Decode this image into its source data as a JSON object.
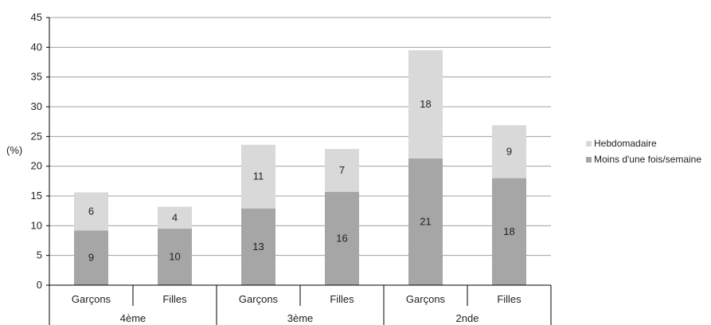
{
  "chart_data": {
    "type": "bar",
    "stacked": true,
    "ylabel": "(%)",
    "ylim": [
      0,
      45
    ],
    "ytick_step": 5,
    "grid": true,
    "legend_position": "right",
    "categories": [
      "Garçons",
      "Filles",
      "Garçons",
      "Filles",
      "Garçons",
      "Filles"
    ],
    "groups": [
      {
        "label": "4ème",
        "span": 2
      },
      {
        "label": "3ème",
        "span": 2
      },
      {
        "label": "2nde",
        "span": 2
      }
    ],
    "series": [
      {
        "name": "Moins d'une fois/semaine",
        "color": "#a6a6a6",
        "values": [
          9.2,
          9.5,
          12.9,
          15.7,
          21.3,
          18.0
        ],
        "labels": [
          "9",
          "10",
          "13",
          "16",
          "21",
          "18"
        ]
      },
      {
        "name": "Hebdomadaire",
        "color": "#d9d9d9",
        "values": [
          6.4,
          3.7,
          10.7,
          7.2,
          18.2,
          8.9
        ],
        "labels": [
          "6",
          "4",
          "11",
          "7",
          "18",
          "9"
        ]
      }
    ]
  }
}
